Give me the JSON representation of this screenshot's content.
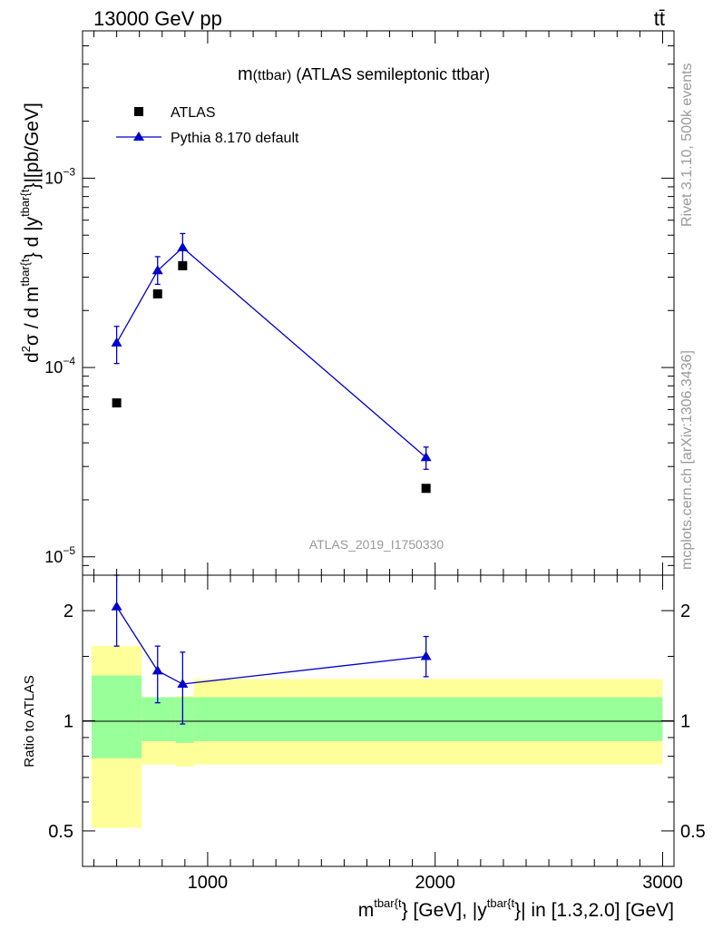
{
  "header": {
    "left": "13000 GeV pp",
    "right": "tt̄"
  },
  "side_labels": {
    "rivet": "Rivet 3.1.10,  500k events",
    "mcplots": "mcplots.cern.ch [arXiv:1306.3436]"
  },
  "colors": {
    "mc": "#0000cc",
    "data": "#000000",
    "band_inner": "#99ff99",
    "band_outer": "#ffff99",
    "watermark": "#999999"
  },
  "chart_data": [
    {
      "type": "line",
      "title": "m(ttbar) (ATLAS semileptonic ttbar)",
      "title_main": "m",
      "title_paren": "(ttbar)",
      "title_rest": " (ATLAS semileptonic ttbar)",
      "watermark": "ATLAS_2019_I1750330",
      "ylabel": "d²σ / d m^{tbar{t}} d |y^{tbar{t}}|[pb/GeV]",
      "ylabel_parts": {
        "d": "d",
        "sup2": "2",
        "sigma_over_dm": "σ /  d m",
        "sup_t1": "tbar{t",
        "brace_d": "} d  |y",
        "sup_t2": "tbar{t",
        "unit": "}|[pb/GeV]"
      },
      "yscale": "log",
      "xlim": [
        450,
        3050
      ],
      "ylim": [
        8e-06,
        0.006
      ],
      "y_ticks": [
        {
          "value": 1e-05,
          "base": "10",
          "exp": "−5"
        },
        {
          "value": 0.0001,
          "base": "10",
          "exp": "−4"
        },
        {
          "value": 0.001,
          "base": "10",
          "exp": "−3"
        }
      ],
      "legend_position": "top-left",
      "series": [
        {
          "name": "ATLAS",
          "marker": "square",
          "x": [
            600,
            780,
            890,
            1960
          ],
          "y": [
            6.5e-05,
            0.000245,
            0.000345,
            2.3e-05
          ]
        },
        {
          "name": "Pythia 8.170 default",
          "marker": "triangle",
          "x": [
            600,
            780,
            890,
            1960
          ],
          "y": [
            0.000135,
            0.000325,
            0.00043,
            3.35e-05
          ],
          "err_low": [
            0.000105,
            0.000275,
            0.00036,
            2.9e-05
          ],
          "err_high": [
            0.000165,
            0.000385,
            0.00051,
            3.8e-05
          ]
        }
      ]
    },
    {
      "type": "line",
      "title": "Ratio to ATLAS",
      "ylabel": "Ratio to ATLAS",
      "xlabel": "m^{tbar{t}} [GeV], |y^{tbar{t}}| in [1.3,2.0] [GeV]",
      "xlabel_parts": {
        "m": "m",
        "sup_t1": "tbar{t",
        "mid": "} [GeV], |y",
        "sup_t2": "tbar{t",
        "rest": "}| in [1.3,2.0] [GeV]"
      },
      "yscale": "log",
      "xlim": [
        450,
        3050
      ],
      "ylim": [
        0.4,
        2.5
      ],
      "x_ticks": [
        1000,
        2000,
        3000
      ],
      "x_tick_labels": [
        "1000",
        "2000",
        "3000"
      ],
      "y_ticks": [
        0.5,
        1,
        2
      ],
      "y_tick_labels": [
        "0.5",
        "1",
        "2"
      ],
      "bands": [
        {
          "x0": 490,
          "x1": 710,
          "outer": [
            0.51,
            1.6
          ],
          "inner": [
            0.79,
            1.33
          ]
        },
        {
          "x0": 710,
          "x1": 860,
          "outer": [
            0.76,
            1.16
          ],
          "inner": [
            0.88,
            1.16
          ]
        },
        {
          "x0": 860,
          "x1": 940,
          "outer": [
            0.75,
            1.17
          ],
          "inner": [
            0.87,
            1.16
          ]
        },
        {
          "x0": 940,
          "x1": 3000,
          "outer": [
            0.76,
            1.3
          ],
          "inner": [
            0.88,
            1.16
          ]
        }
      ],
      "series": [
        {
          "name": "Pythia 8.170 default / ATLAS",
          "marker": "triangle",
          "x": [
            600,
            780,
            890,
            1960
          ],
          "y": [
            2.05,
            1.37,
            1.26,
            1.5
          ],
          "err_low": [
            1.6,
            1.12,
            0.98,
            1.32
          ],
          "err_high": [
            2.5,
            1.6,
            1.54,
            1.7
          ]
        }
      ]
    }
  ]
}
